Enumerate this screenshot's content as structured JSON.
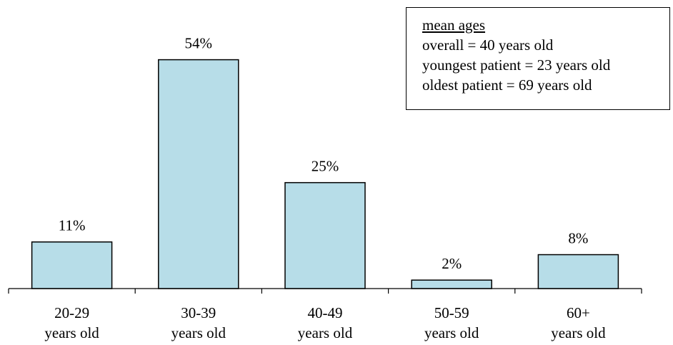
{
  "chart_data": {
    "type": "bar",
    "categories": [
      [
        "20-29",
        "years old"
      ],
      [
        "30-39",
        "years old"
      ],
      [
        "40-49",
        "years old"
      ],
      [
        "50-59",
        "years old"
      ],
      [
        "60+",
        "years old"
      ]
    ],
    "values": [
      11,
      54,
      25,
      2,
      8
    ],
    "data_labels": [
      "11%",
      "54%",
      "25%",
      "2%",
      "8%"
    ],
    "unit": "%",
    "ylim": [
      0,
      60
    ],
    "grid": false,
    "title": "",
    "xlabel": "",
    "ylabel": "",
    "colors": {
      "bar_fill": "#b7dde8",
      "bar_stroke": "#000000"
    }
  },
  "legend": {
    "placement": "top-right",
    "title": "mean ages",
    "lines": [
      "overall = 40 years old",
      "youngest patient = 23 years old",
      "oldest patient = 69 years old"
    ]
  }
}
